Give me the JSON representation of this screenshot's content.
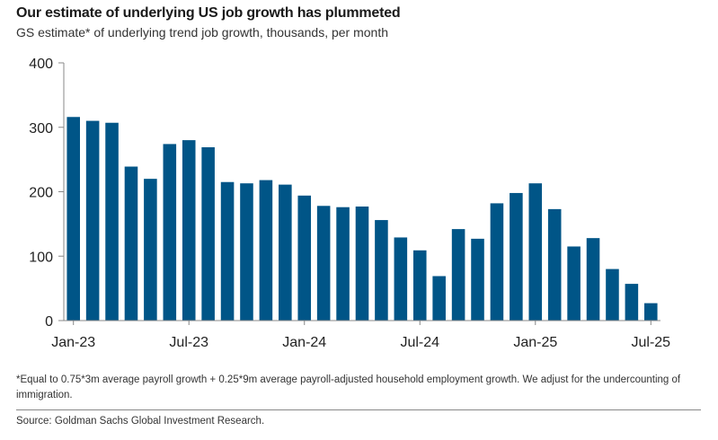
{
  "chart_data": {
    "type": "bar",
    "title": "Our estimate of underlying US job growth has plummeted",
    "subtitle": "GS estimate* of underlying trend job growth, thousands, per month",
    "xlabel": "",
    "ylabel": "",
    "ylim": [
      0,
      400
    ],
    "yticks": [
      0,
      100,
      200,
      300,
      400
    ],
    "grid": false,
    "categories": [
      "Jan-23",
      "Feb-23",
      "Mar-23",
      "Apr-23",
      "May-23",
      "Jun-23",
      "Jul-23",
      "Aug-23",
      "Sep-23",
      "Oct-23",
      "Nov-23",
      "Dec-23",
      "Jan-24",
      "Feb-24",
      "Mar-24",
      "Apr-24",
      "May-24",
      "Jun-24",
      "Jul-24",
      "Aug-24",
      "Sep-24",
      "Oct-24",
      "Nov-24",
      "Dec-24",
      "Jan-25",
      "Feb-25",
      "Mar-25",
      "Apr-25",
      "May-25",
      "Jun-25",
      "Jul-25"
    ],
    "values": [
      316,
      310,
      307,
      239,
      220,
      274,
      280,
      269,
      215,
      213,
      218,
      211,
      194,
      178,
      176,
      177,
      156,
      129,
      109,
      69,
      142,
      127,
      182,
      198,
      213,
      173,
      115,
      128,
      80,
      57,
      27
    ],
    "xtick_labels": [
      "Jan-23",
      "Jul-23",
      "Jan-24",
      "Jul-24",
      "Jan-25",
      "Jul-25"
    ],
    "bar_color": "#005587"
  },
  "footnote": "*Equal to 0.75*3m average payroll growth + 0.25*9m average payroll-adjusted household employment growth. We adjust for the undercounting of immigration.",
  "source": "Source: Goldman Sachs Global Investment Research."
}
